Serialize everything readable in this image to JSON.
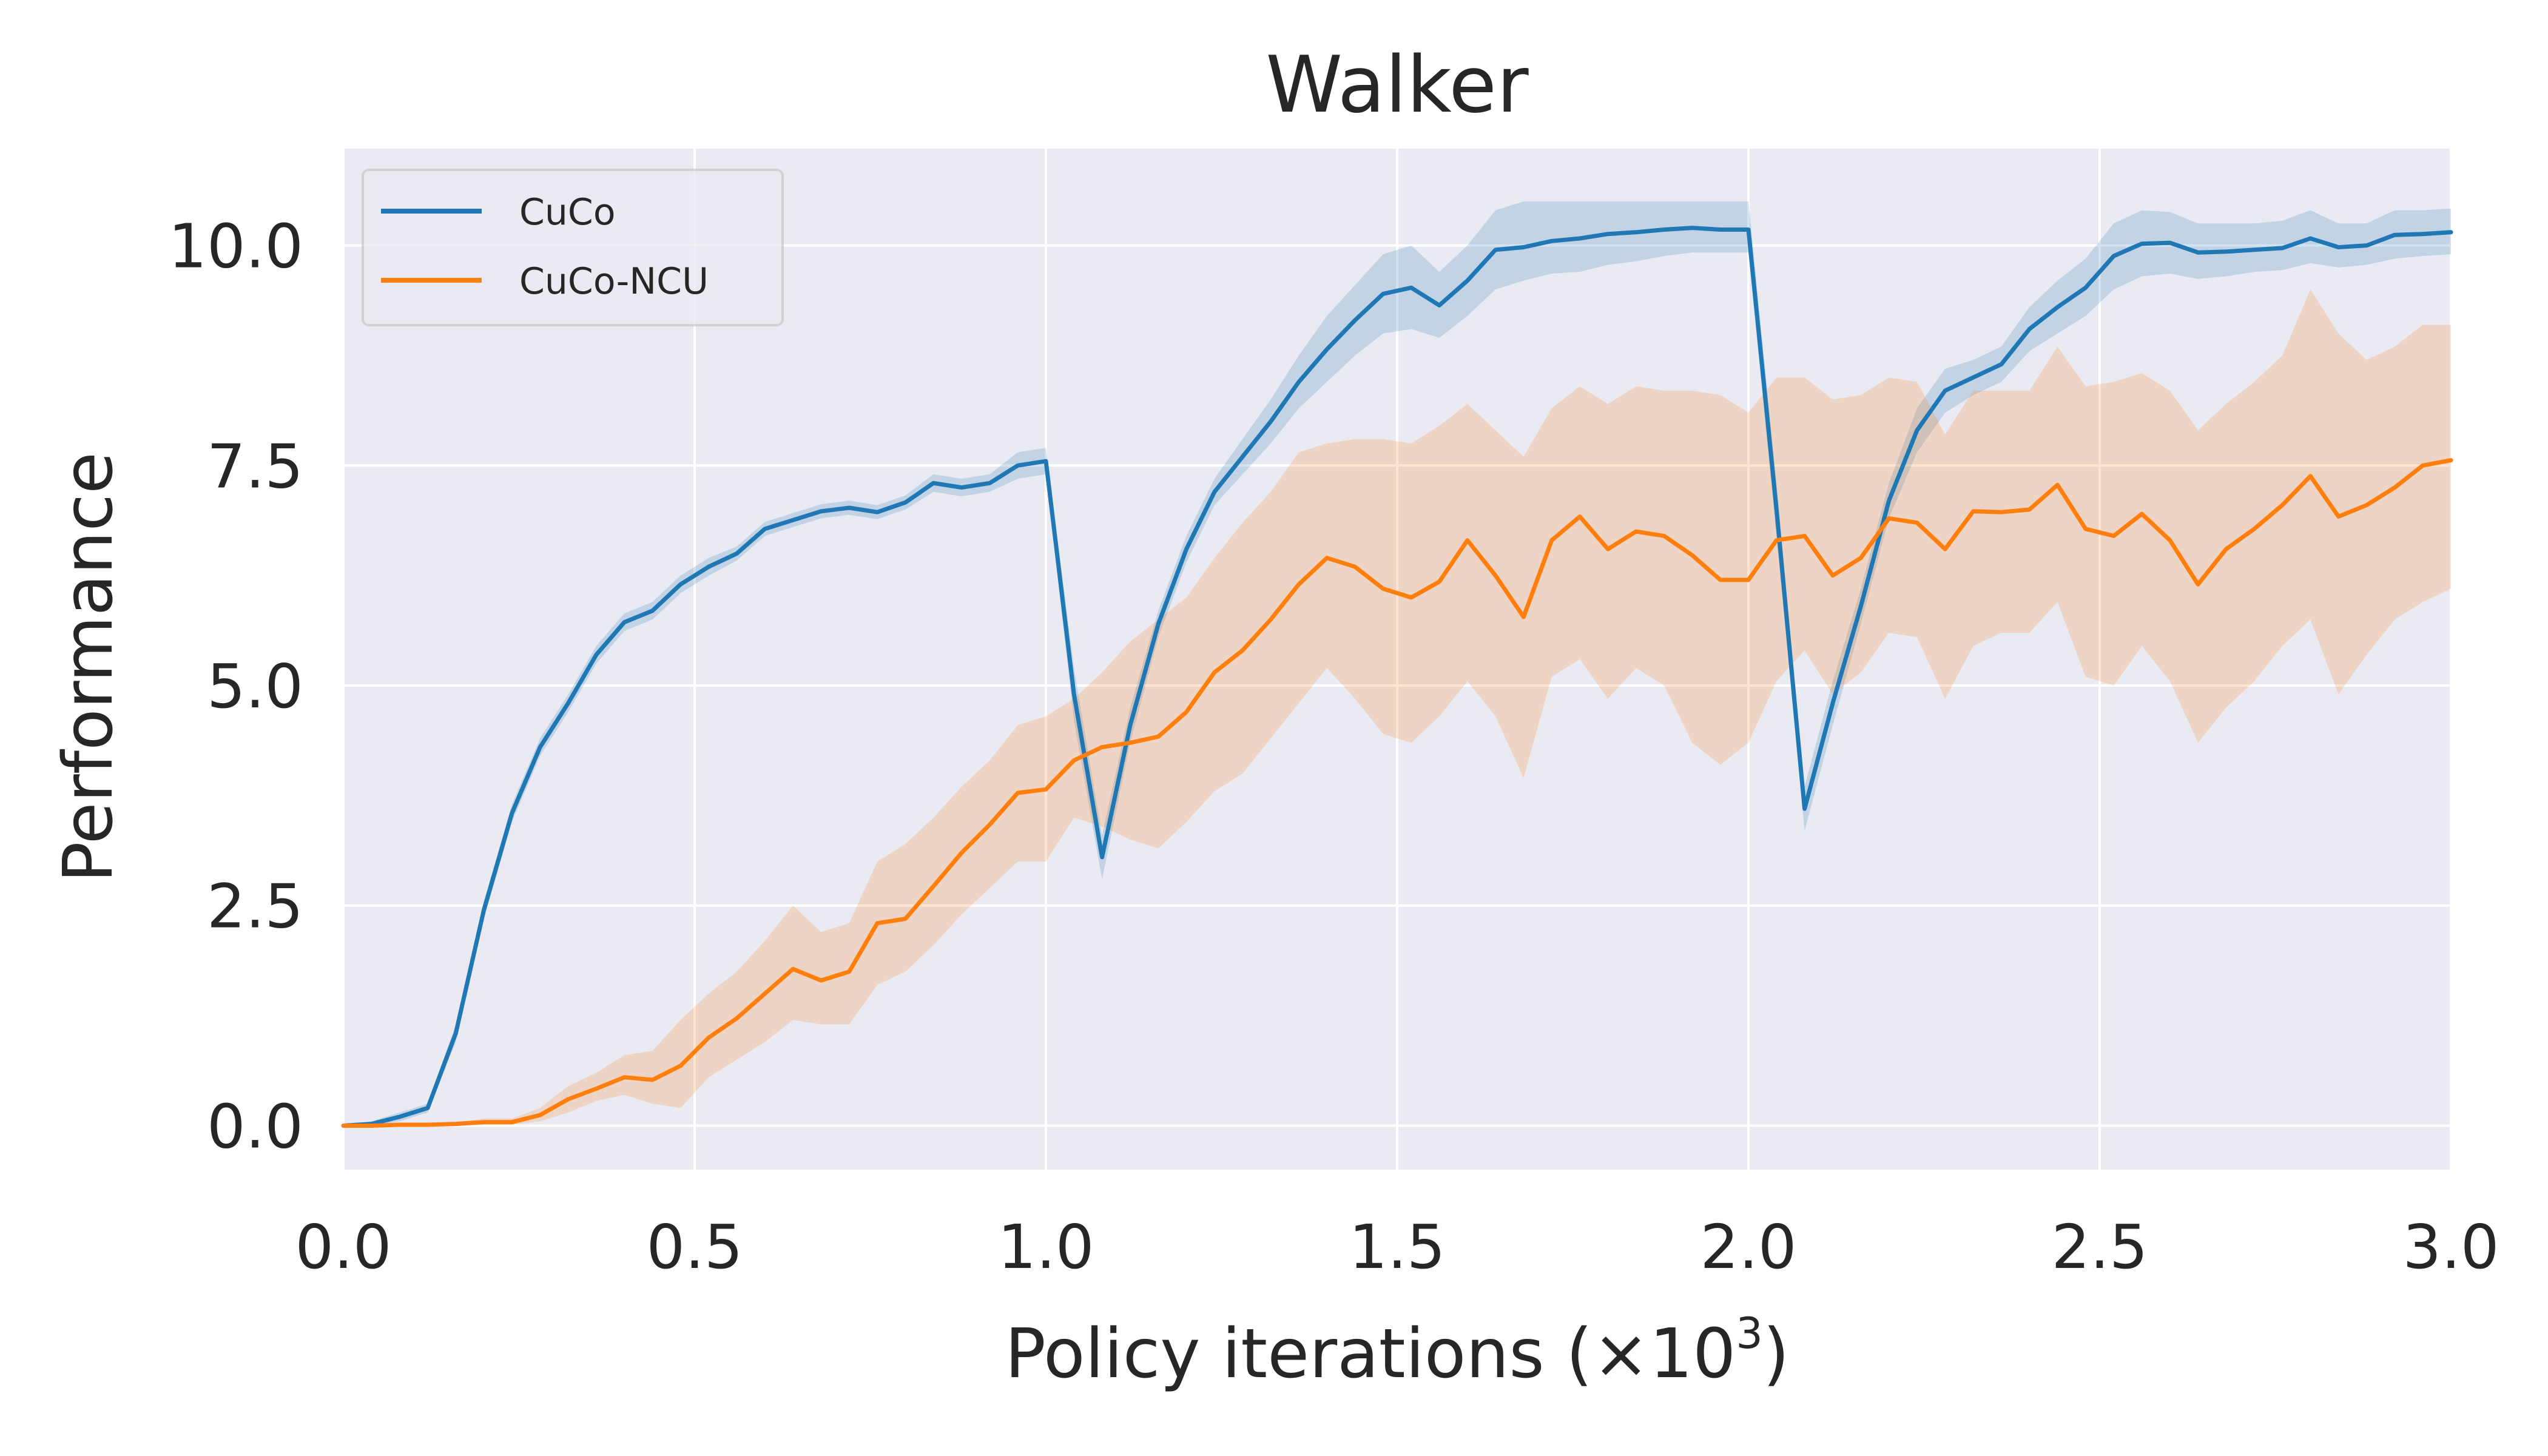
{
  "chart_data": {
    "type": "line",
    "title": "Walker",
    "xlabel": "Policy iterations (×10",
    "xlabel_superscript": "3",
    "xlabel_suffix": ")",
    "ylabel": "Performance",
    "xlim": [
      0.0,
      3.0
    ],
    "ylim": [
      -0.5,
      11.1
    ],
    "xticks": [
      0.0,
      0.5,
      1.0,
      1.5,
      2.0,
      2.5,
      3.0
    ],
    "xtick_labels": [
      "0.0",
      "0.5",
      "1.0",
      "1.5",
      "2.0",
      "2.5",
      "3.0"
    ],
    "yticks": [
      0.0,
      2.5,
      5.0,
      7.5,
      10.0
    ],
    "ytick_labels": [
      "0.0",
      "2.5",
      "5.0",
      "7.5",
      "10.0"
    ],
    "grid": true,
    "legend_position": "top-left",
    "background_color": "#eaeaf2",
    "series": [
      {
        "name": "CuCo",
        "color": "#1f77b4",
        "x": [
          0.0,
          0.04,
          0.08,
          0.12,
          0.16,
          0.2,
          0.24,
          0.28,
          0.32,
          0.36,
          0.4,
          0.44,
          0.48,
          0.52,
          0.56,
          0.6,
          0.64,
          0.68,
          0.72,
          0.76,
          0.8,
          0.84,
          0.88,
          0.92,
          0.96,
          1.0,
          1.04,
          1.08,
          1.12,
          1.16,
          1.2,
          1.24,
          1.28,
          1.32,
          1.36,
          1.4,
          1.44,
          1.48,
          1.52,
          1.56,
          1.6,
          1.64,
          1.68,
          1.72,
          1.76,
          1.8,
          1.84,
          1.88,
          1.92,
          1.96,
          2.0,
          2.04,
          2.08,
          2.12,
          2.16,
          2.2,
          2.24,
          2.28,
          2.32,
          2.36,
          2.4,
          2.44,
          2.48,
          2.52,
          2.56,
          2.6,
          2.64,
          2.68,
          2.72,
          2.76,
          2.8,
          2.84,
          2.88,
          2.92,
          2.96,
          3.0
        ],
        "y": [
          0.0,
          0.02,
          0.1,
          0.2,
          1.05,
          2.45,
          3.55,
          4.3,
          4.8,
          5.35,
          5.72,
          5.85,
          6.15,
          6.35,
          6.5,
          6.78,
          6.88,
          6.98,
          7.02,
          6.97,
          7.08,
          7.3,
          7.25,
          7.3,
          7.5,
          7.55,
          4.9,
          3.05,
          4.55,
          5.7,
          6.55,
          7.2,
          7.6,
          8.0,
          8.45,
          8.82,
          9.15,
          9.45,
          9.52,
          9.32,
          9.6,
          9.95,
          9.98,
          10.05,
          10.08,
          10.13,
          10.15,
          10.18,
          10.2,
          10.18,
          10.18,
          7.0,
          3.6,
          4.8,
          5.9,
          7.1,
          7.9,
          8.35,
          8.5,
          8.65,
          9.05,
          9.3,
          9.52,
          9.88,
          10.02,
          10.03,
          9.92,
          9.93,
          9.95,
          9.97,
          10.08,
          9.98,
          10.0,
          10.12,
          10.13,
          10.15
        ],
        "lower": [
          0.0,
          0.0,
          0.05,
          0.15,
          0.95,
          2.35,
          3.45,
          4.2,
          4.7,
          5.25,
          5.62,
          5.75,
          6.05,
          6.25,
          6.42,
          6.7,
          6.8,
          6.9,
          6.94,
          6.89,
          7.0,
          7.2,
          7.15,
          7.2,
          7.35,
          7.4,
          4.6,
          2.8,
          4.35,
          5.55,
          6.4,
          7.05,
          7.4,
          7.75,
          8.15,
          8.45,
          8.75,
          9.0,
          9.05,
          8.95,
          9.2,
          9.5,
          9.6,
          9.68,
          9.7,
          9.78,
          9.82,
          9.88,
          9.92,
          9.92,
          9.92,
          6.7,
          3.35,
          4.55,
          5.7,
          6.9,
          7.65,
          8.1,
          8.3,
          8.45,
          8.8,
          9.0,
          9.2,
          9.5,
          9.65,
          9.68,
          9.62,
          9.65,
          9.7,
          9.72,
          9.8,
          9.75,
          9.78,
          9.85,
          9.88,
          9.9
        ],
        "upper": [
          0.0,
          0.05,
          0.15,
          0.25,
          1.15,
          2.55,
          3.65,
          4.4,
          4.9,
          5.45,
          5.82,
          5.95,
          6.25,
          6.45,
          6.58,
          6.86,
          6.96,
          7.06,
          7.1,
          7.05,
          7.16,
          7.4,
          7.35,
          7.4,
          7.65,
          7.7,
          5.2,
          3.3,
          4.75,
          5.85,
          6.7,
          7.35,
          7.8,
          8.25,
          8.75,
          9.2,
          9.55,
          9.9,
          10.0,
          9.7,
          10.0,
          10.4,
          10.5,
          10.5,
          10.5,
          10.5,
          10.5,
          10.5,
          10.5,
          10.5,
          10.5,
          7.3,
          3.85,
          5.05,
          6.1,
          7.3,
          8.15,
          8.6,
          8.7,
          8.85,
          9.3,
          9.6,
          9.85,
          10.25,
          10.4,
          10.38,
          10.25,
          10.25,
          10.25,
          10.28,
          10.4,
          10.25,
          10.25,
          10.4,
          10.4,
          10.42
        ]
      },
      {
        "name": "CuCo-NCU",
        "color": "#ff7f0e",
        "x": [
          0.0,
          0.04,
          0.08,
          0.12,
          0.16,
          0.2,
          0.24,
          0.28,
          0.32,
          0.36,
          0.4,
          0.44,
          0.48,
          0.52,
          0.56,
          0.6,
          0.64,
          0.68,
          0.72,
          0.76,
          0.8,
          0.84,
          0.88,
          0.92,
          0.96,
          1.0,
          1.04,
          1.08,
          1.12,
          1.16,
          1.2,
          1.24,
          1.28,
          1.32,
          1.36,
          1.4,
          1.44,
          1.48,
          1.52,
          1.56,
          1.6,
          1.64,
          1.68,
          1.72,
          1.76,
          1.8,
          1.84,
          1.88,
          1.92,
          1.96,
          2.0,
          2.04,
          2.08,
          2.12,
          2.16,
          2.2,
          2.24,
          2.28,
          2.32,
          2.36,
          2.4,
          2.44,
          2.48,
          2.52,
          2.56,
          2.6,
          2.64,
          2.68,
          2.72,
          2.76,
          2.8,
          2.84,
          2.88,
          2.92,
          2.96,
          3.0
        ],
        "y": [
          0.0,
          0.0,
          0.01,
          0.01,
          0.02,
          0.04,
          0.04,
          0.12,
          0.3,
          0.42,
          0.55,
          0.52,
          0.68,
          1.0,
          1.22,
          1.5,
          1.78,
          1.65,
          1.75,
          2.3,
          2.35,
          2.72,
          3.1,
          3.42,
          3.78,
          3.82,
          4.15,
          4.3,
          4.35,
          4.42,
          4.7,
          5.15,
          5.4,
          5.75,
          6.15,
          6.45,
          6.35,
          6.1,
          6.0,
          6.18,
          6.65,
          6.25,
          5.78,
          6.65,
          6.92,
          6.55,
          6.75,
          6.7,
          6.48,
          6.2,
          6.2,
          6.65,
          6.7,
          6.25,
          6.45,
          6.9,
          6.85,
          6.55,
          6.98,
          6.97,
          7.0,
          7.28,
          6.78,
          6.7,
          6.95,
          6.65,
          6.15,
          6.55,
          6.78,
          7.05,
          7.38,
          6.92,
          7.05,
          7.25,
          7.5,
          7.56
        ],
        "lower": [
          0.0,
          0.0,
          0.0,
          0.0,
          0.0,
          0.01,
          0.01,
          0.05,
          0.15,
          0.28,
          0.35,
          0.25,
          0.2,
          0.55,
          0.75,
          0.95,
          1.2,
          1.15,
          1.15,
          1.6,
          1.75,
          2.05,
          2.4,
          2.7,
          3.0,
          3.0,
          3.5,
          3.4,
          3.25,
          3.15,
          3.45,
          3.8,
          4.0,
          4.4,
          4.8,
          5.2,
          4.85,
          4.45,
          4.35,
          4.65,
          5.05,
          4.65,
          3.95,
          5.1,
          5.3,
          4.85,
          5.2,
          5.0,
          4.35,
          4.1,
          4.35,
          5.05,
          5.4,
          4.9,
          5.15,
          5.6,
          5.55,
          4.85,
          5.45,
          5.6,
          5.6,
          5.95,
          5.1,
          5.0,
          5.45,
          5.05,
          4.35,
          4.75,
          5.05,
          5.45,
          5.75,
          4.9,
          5.35,
          5.75,
          5.95,
          6.1
        ],
        "upper": [
          0.0,
          0.0,
          0.02,
          0.02,
          0.04,
          0.08,
          0.08,
          0.2,
          0.45,
          0.6,
          0.8,
          0.85,
          1.2,
          1.5,
          1.75,
          2.1,
          2.5,
          2.2,
          2.3,
          3.0,
          3.2,
          3.5,
          3.85,
          4.15,
          4.55,
          4.65,
          4.85,
          5.15,
          5.5,
          5.75,
          6.0,
          6.45,
          6.85,
          7.2,
          7.65,
          7.75,
          7.8,
          7.8,
          7.75,
          7.95,
          8.2,
          7.9,
          7.6,
          8.15,
          8.4,
          8.2,
          8.4,
          8.35,
          8.35,
          8.3,
          8.1,
          8.5,
          8.5,
          8.25,
          8.3,
          8.5,
          8.45,
          7.85,
          8.35,
          8.35,
          8.35,
          8.85,
          8.4,
          8.45,
          8.55,
          8.35,
          7.9,
          8.2,
          8.45,
          8.75,
          9.5,
          9.0,
          8.7,
          8.85,
          9.1,
          9.1
        ]
      }
    ]
  }
}
